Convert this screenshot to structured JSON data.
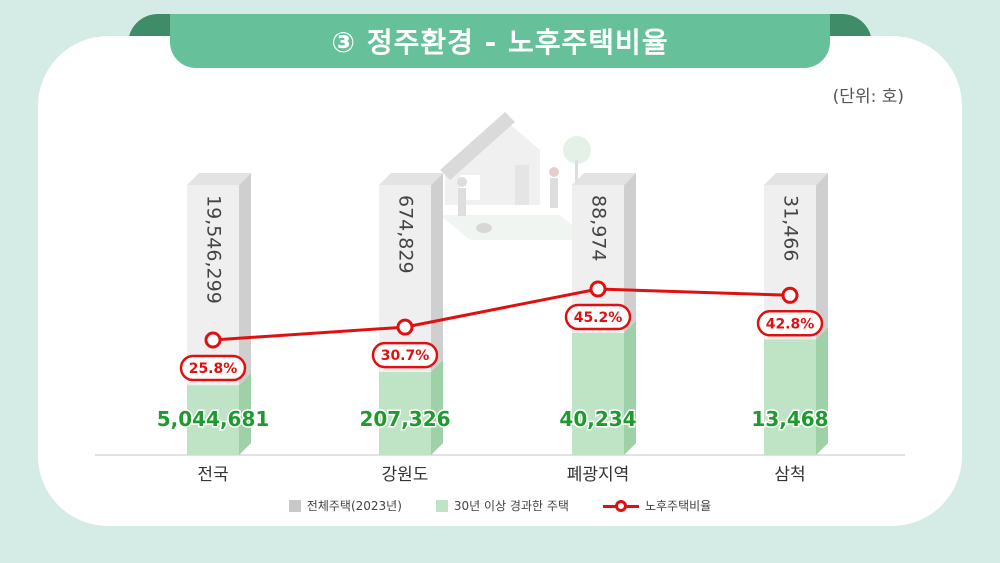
{
  "header": {
    "title": "③ 정주환경 - 노후주택비율"
  },
  "unit_label": "(단위: 호)",
  "colors": {
    "total": "#dcdcdc",
    "old": "#bfe3c5",
    "old_text": "#1f9a2f",
    "ratio": "#e01010",
    "ribbon": "#66c19a"
  },
  "chart_data": {
    "type": "bar",
    "categories": [
      "전국",
      "강원도",
      "폐광지역",
      "삼척"
    ],
    "series": [
      {
        "name": "전체주택(2023년)",
        "values_label": [
          "19,546,299",
          "674,829",
          "88,974",
          "31,466"
        ],
        "values": [
          19546299,
          674829,
          88974,
          31466
        ]
      },
      {
        "name": "30년 이상 경과한 주택",
        "values_label": [
          "5,044,681",
          "207,326",
          "40,234",
          "13,468"
        ],
        "values": [
          5044681,
          207326,
          40234,
          13468
        ]
      },
      {
        "name": "노후주택비율",
        "type": "line",
        "values": [
          25.8,
          30.7,
          45.2,
          42.8
        ],
        "values_label": [
          "25.8%",
          "30.7%",
          "45.2%",
          "42.8%"
        ]
      }
    ]
  },
  "legend": {
    "items": [
      {
        "label": "전체주택(2023년)",
        "color": "#c8c8c8"
      },
      {
        "label": "30년 이상 경과한 주택",
        "color": "#bfe3c5"
      },
      {
        "label": "노후주택비율",
        "color": "#e01010"
      }
    ]
  }
}
